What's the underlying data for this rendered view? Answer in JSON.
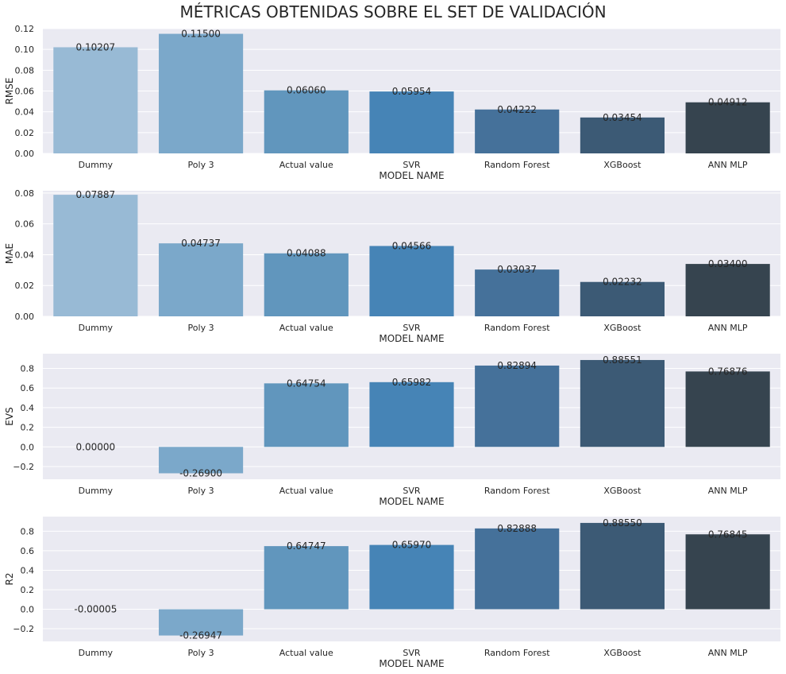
{
  "title": "MÉTRICAS OBTENIDAS SOBRE EL SET DE VALIDACIÓN",
  "chart_data": [
    {
      "type": "bar",
      "ylabel": "RMSE",
      "xlabel": "MODEL NAME",
      "categories": [
        "Dummy",
        "Poly 3",
        "Actual value",
        "SVR",
        "Random Forest",
        "XGBoost",
        "ANN MLP"
      ],
      "values": [
        0.10207,
        0.115,
        0.0606,
        0.05954,
        0.04222,
        0.03454,
        0.04912
      ],
      "value_labels": [
        "0.10207",
        "0.11500",
        "0.06060",
        "0.05954",
        "0.04222",
        "0.03454",
        "0.04912"
      ],
      "ylim": [
        0,
        0.12
      ],
      "yticks": [
        0,
        0.02,
        0.04,
        0.06,
        0.08,
        0.1,
        0.12
      ],
      "ytick_labels": [
        "0.00",
        "0.02",
        "0.04",
        "0.06",
        "0.08",
        "0.10",
        "0.12"
      ],
      "grid": true
    },
    {
      "type": "bar",
      "ylabel": "MAE",
      "xlabel": "MODEL NAME",
      "categories": [
        "Dummy",
        "Poly 3",
        "Actual value",
        "SVR",
        "Random Forest",
        "XGBoost",
        "ANN MLP"
      ],
      "values": [
        0.07887,
        0.04737,
        0.04088,
        0.04566,
        0.03037,
        0.02232,
        0.034
      ],
      "value_labels": [
        "0.07887",
        "0.04737",
        "0.04088",
        "0.04566",
        "0.03037",
        "0.02232",
        "0.03400"
      ],
      "ylim": [
        0,
        0.0815
      ],
      "yticks": [
        0,
        0.02,
        0.04,
        0.06,
        0.08
      ],
      "ytick_labels": [
        "0.00",
        "0.02",
        "0.04",
        "0.06",
        "0.08"
      ],
      "grid": true
    },
    {
      "type": "bar",
      "ylabel": "EVS",
      "xlabel": "MODEL NAME",
      "categories": [
        "Dummy",
        "Poly 3",
        "Actual value",
        "SVR",
        "Random Forest",
        "XGBoost",
        "ANN MLP"
      ],
      "values": [
        0.0,
        -0.269,
        0.64754,
        0.65982,
        0.82894,
        0.88551,
        0.76876
      ],
      "value_labels": [
        "0.00000",
        "-0.26900",
        "0.64754",
        "0.65982",
        "0.82894",
        "0.88551",
        "0.76876"
      ],
      "ylim": [
        -0.33,
        0.95
      ],
      "yticks": [
        -0.2,
        0,
        0.2,
        0.4,
        0.6,
        0.8
      ],
      "ytick_labels": [
        "−0.2",
        "0.0",
        "0.2",
        "0.4",
        "0.6",
        "0.8"
      ],
      "grid": true
    },
    {
      "type": "bar",
      "ylabel": "R2",
      "xlabel": "MODEL NAME",
      "categories": [
        "Dummy",
        "Poly 3",
        "Actual value",
        "SVR",
        "Random Forest",
        "XGBoost",
        "ANN MLP"
      ],
      "values": [
        -5e-05,
        -0.26947,
        0.64747,
        0.6597,
        0.82888,
        0.8855,
        0.76845
      ],
      "value_labels": [
        "-0.00005",
        "-0.26947",
        "0.64747",
        "0.65970",
        "0.82888",
        "0.88550",
        "0.76845"
      ],
      "ylim": [
        -0.33,
        0.95
      ],
      "yticks": [
        -0.2,
        0,
        0.2,
        0.4,
        0.6,
        0.8
      ],
      "ytick_labels": [
        "−0.2",
        "0.0",
        "0.2",
        "0.4",
        "0.6",
        "0.8"
      ],
      "grid": true
    }
  ],
  "colors": {
    "axes_bg": "#eaeaf2",
    "grid": "#ffffff",
    "bars": [
      "#98bad5",
      "#7ba8ca",
      "#6196bd",
      "#4684b6",
      "#45719a",
      "#3c5a75",
      "#36444f"
    ]
  }
}
